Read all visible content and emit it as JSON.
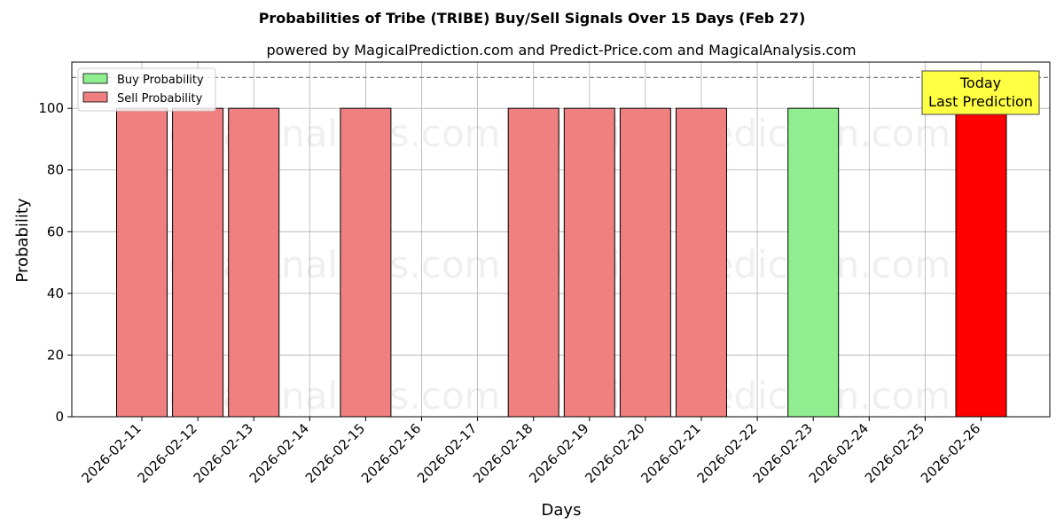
{
  "chart_data": {
    "type": "bar",
    "title": "Probabilities of Tribe (TRIBE) Buy/Sell Signals Over 15 Days (Feb 27)",
    "subtitle": "powered by MagicalPrediction.com and Predict-Price.com and MagicalAnalysis.com",
    "xlabel": "Days",
    "ylabel": "Probability",
    "ylim": [
      0,
      115
    ],
    "yticks": [
      0,
      20,
      40,
      60,
      80,
      100
    ],
    "grid": true,
    "legend_placement": "top-left",
    "reference_line": 110,
    "categories": [
      "2026-02-11",
      "2026-02-12",
      "2026-02-13",
      "2026-02-14",
      "2026-02-15",
      "2026-02-16",
      "2026-02-17",
      "2026-02-18",
      "2026-02-19",
      "2026-02-20",
      "2026-02-21",
      "2026-02-22",
      "2026-02-23",
      "2026-02-24",
      "2026-02-25",
      "2026-02-26"
    ],
    "series": [
      {
        "name": "Buy Probability",
        "color": "#90ee90",
        "values": [
          0,
          0,
          0,
          0,
          0,
          0,
          0,
          0,
          0,
          0,
          0,
          0,
          100,
          0,
          0,
          0
        ]
      },
      {
        "name": "Sell Probability",
        "color": "#f08080",
        "values": [
          100,
          100,
          100,
          0,
          100,
          0,
          0,
          100,
          100,
          100,
          100,
          0,
          0,
          0,
          0,
          100
        ]
      }
    ],
    "highlight": {
      "category": "2026-02-26",
      "color": "#ff0000"
    },
    "annotation": {
      "line1": "Today",
      "line2": "Last Prediction",
      "background": "#ffff44"
    },
    "watermarks": [
      "MagicalAnalysis.com",
      "MagicalPrediction.com"
    ]
  }
}
